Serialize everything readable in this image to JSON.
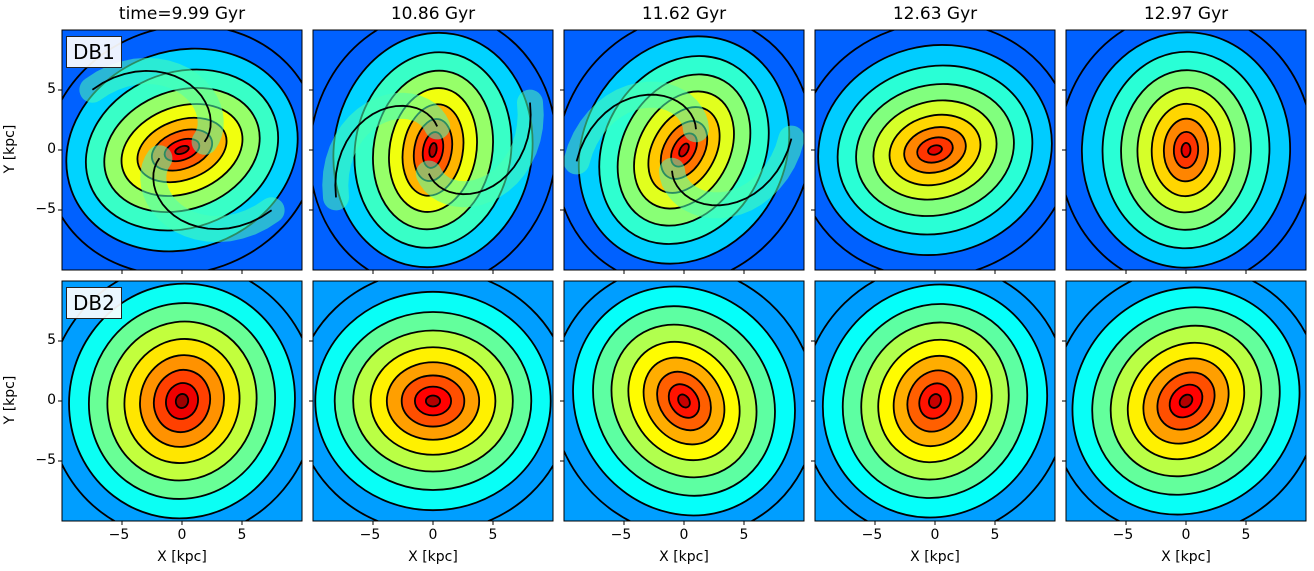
{
  "figure": {
    "columns": [
      "time=9.99 Gyr",
      "10.86 Gyr",
      "11.62 Gyr",
      "12.63 Gyr",
      "12.97 Gyr"
    ],
    "rows": [
      "DB1",
      "DB2"
    ],
    "xlabel": "X [kpc]",
    "ylabel": "Y [kpc]",
    "colormap": "jet",
    "contour_color": "#000000"
  },
  "chart_data": [
    {
      "type": "heatmap",
      "row": "DB1",
      "title": "time=9.99 Gyr",
      "morphology": "two-armed spiral, elongated nucleus",
      "xlim": [
        -10,
        10
      ],
      "ylim": [
        -10,
        10
      ],
      "xticks": [
        -5,
        0,
        5
      ],
      "yticks": [
        -5,
        0,
        5
      ],
      "bar_angle_deg": 20,
      "bar_axis_ratio": 0.45,
      "spiral": true,
      "peak_intensity": 0.95
    },
    {
      "type": "heatmap",
      "row": "DB1",
      "title": "10.86 Gyr",
      "morphology": "strong bar with spiral arms",
      "xlim": [
        -10,
        10
      ],
      "ylim": [
        -10,
        10
      ],
      "xticks": [
        -5,
        0,
        5
      ],
      "yticks": [
        -5,
        0,
        5
      ],
      "bar_angle_deg": 80,
      "bar_axis_ratio": 0.45,
      "spiral": true,
      "peak_intensity": 0.95
    },
    {
      "type": "heatmap",
      "row": "DB1",
      "title": "11.62 Gyr",
      "morphology": "bar with trailing arms",
      "xlim": [
        -10,
        10
      ],
      "ylim": [
        -10,
        10
      ],
      "xticks": [
        -5,
        0,
        5
      ],
      "yticks": [
        -5,
        0,
        5
      ],
      "bar_angle_deg": 60,
      "bar_axis_ratio": 0.5,
      "spiral": true,
      "peak_intensity": 0.92
    },
    {
      "type": "heatmap",
      "row": "DB1",
      "title": "12.63 Gyr",
      "morphology": "horizontal oval disk",
      "xlim": [
        -10,
        10
      ],
      "ylim": [
        -10,
        10
      ],
      "xticks": [
        -5,
        0,
        5
      ],
      "yticks": [
        -5,
        0,
        5
      ],
      "bar_angle_deg": 15,
      "bar_axis_ratio": 0.6,
      "spiral": false,
      "peak_intensity": 0.9
    },
    {
      "type": "heatmap",
      "row": "DB1",
      "title": "12.97 Gyr",
      "morphology": "vertical oval disk",
      "xlim": [
        -10,
        10
      ],
      "ylim": [
        -10,
        10
      ],
      "xticks": [
        -5,
        0,
        5
      ],
      "yticks": [
        -5,
        0,
        5
      ],
      "bar_angle_deg": 88,
      "bar_axis_ratio": 0.6,
      "spiral": false,
      "peak_intensity": 0.9
    },
    {
      "type": "heatmap",
      "row": "DB2",
      "title": "time=9.99 Gyr",
      "morphology": "round disk with small spiral nucleus",
      "xlim": [
        -10,
        10
      ],
      "ylim": [
        -10,
        10
      ],
      "xticks": [
        -5,
        0,
        5
      ],
      "yticks": [
        -5,
        0,
        5
      ],
      "bar_angle_deg": 75,
      "bar_axis_ratio": 0.85,
      "spiral": false,
      "peak_intensity": 0.97
    },
    {
      "type": "heatmap",
      "row": "DB2",
      "title": "10.86 Gyr",
      "morphology": "round disk with short horizontal bar",
      "xlim": [
        -10,
        10
      ],
      "ylim": [
        -10,
        10
      ],
      "xticks": [
        -5,
        0,
        5
      ],
      "yticks": [
        -5,
        0,
        5
      ],
      "bar_angle_deg": 0,
      "bar_axis_ratio": 0.75,
      "spiral": false,
      "peak_intensity": 0.95
    },
    {
      "type": "heatmap",
      "row": "DB2",
      "title": "11.62 Gyr",
      "morphology": "disk with tilted bar",
      "xlim": [
        -10,
        10
      ],
      "ylim": [
        -10,
        10
      ],
      "xticks": [
        -5,
        0,
        5
      ],
      "yticks": [
        -5,
        0,
        5
      ],
      "bar_angle_deg": 125,
      "bar_axis_ratio": 0.7,
      "spiral": false,
      "peak_intensity": 0.93
    },
    {
      "type": "heatmap",
      "row": "DB2",
      "title": "12.63 Gyr",
      "morphology": "round disk with weak bar",
      "xlim": [
        -10,
        10
      ],
      "ylim": [
        -10,
        10
      ],
      "xticks": [
        -5,
        0,
        5
      ],
      "yticks": [
        -5,
        0,
        5
      ],
      "bar_angle_deg": 65,
      "bar_axis_ratio": 0.8,
      "spiral": false,
      "peak_intensity": 0.93
    },
    {
      "type": "heatmap",
      "row": "DB2",
      "title": "12.97 Gyr",
      "morphology": "round disk with tilted oval core",
      "xlim": [
        -10,
        10
      ],
      "ylim": [
        -10,
        10
      ],
      "xticks": [
        -5,
        0,
        5
      ],
      "yticks": [
        -5,
        0,
        5
      ],
      "bar_angle_deg": 45,
      "bar_axis_ratio": 0.75,
      "spiral": false,
      "peak_intensity": 0.95
    }
  ]
}
